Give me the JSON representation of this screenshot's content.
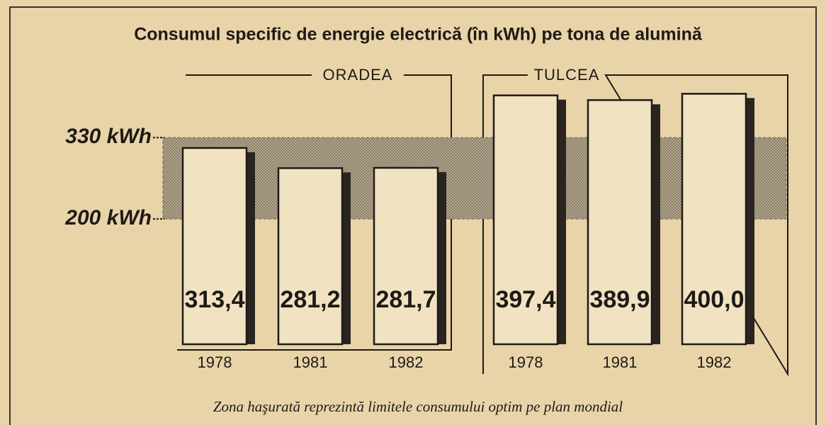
{
  "chart_data": {
    "type": "bar",
    "title": "Consumul specific de energie electrică (în kWh) pe tona de alumină",
    "categories": [
      "1978",
      "1981",
      "1982"
    ],
    "series": [
      {
        "name": "ORADEA",
        "color": "#f1e2c2",
        "values": [
          313.4,
          281.2,
          281.7
        ],
        "value_labels": [
          "313,4",
          "281,2",
          "281,7"
        ]
      },
      {
        "name": "TULCEA",
        "color": "#f1e2c2",
        "values": [
          397.4,
          389.9,
          400.0
        ],
        "value_labels": [
          "397,4",
          "389,9",
          "400,0"
        ]
      }
    ],
    "ylim": [
      0,
      440
    ],
    "yticks": [
      {
        "value": 200,
        "label": "200 kWh"
      },
      {
        "value": 330,
        "label": "330 kWh"
      }
    ],
    "band": [
      200,
      330
    ],
    "annotation": "Zona haşurată reprezintă limitele consumului  optim pe plan mondial"
  }
}
